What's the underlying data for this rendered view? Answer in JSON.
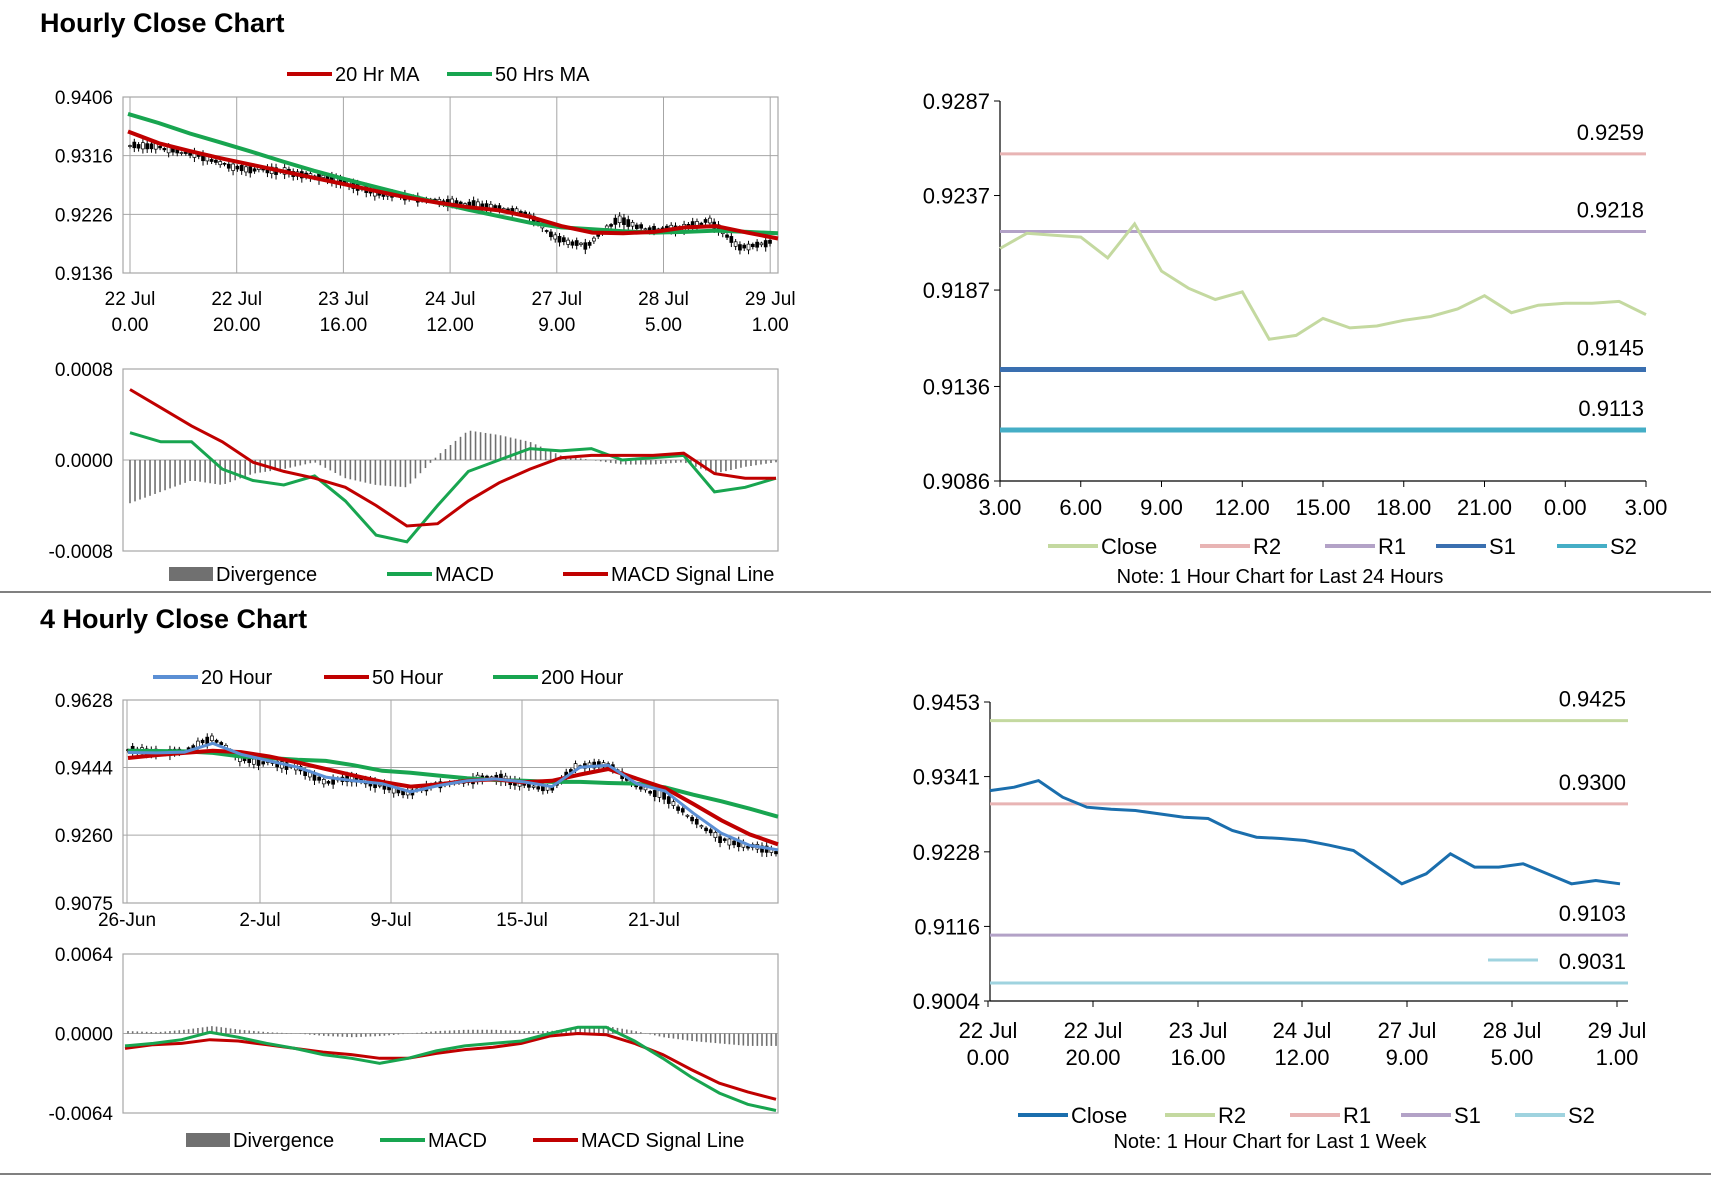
{
  "titles": {
    "hourly": "Hourly Close Chart",
    "four_hourly": "4 Hourly Close Chart"
  },
  "notes": {
    "tr": "Note: 1 Hour Chart for Last 24 Hours",
    "br": "Note: 1 Hour Chart for Last 1 Week"
  },
  "colors": {
    "ma_red": "#c00000",
    "ma_green": "#18a550",
    "ma_blue": "#5b8fd4",
    "divergence": "#707070",
    "close_tr": "#c4d9a0",
    "r2_tr": "#e8b4b4",
    "r1_tr": "#b3a2c7",
    "s1_tr": "#3a6fb0",
    "s2_tr": "#45aec6",
    "close_br": "#1a6ead",
    "r2_br": "#c4d9a0",
    "r1_br": "#e8b4b4",
    "s1_br": "#b3a2c7",
    "s2_br": "#9fd3df",
    "grid": "#a6a6a6"
  },
  "chart_data": [
    {
      "id": "tl_price",
      "type": "line",
      "x_tick_labels": [
        [
          "22 Jul",
          "0.00"
        ],
        [
          "22 Jul",
          "20.00"
        ],
        [
          "23 Jul",
          "16.00"
        ],
        [
          "24 Jul",
          "12.00"
        ],
        [
          "27 Jul",
          "9.00"
        ],
        [
          "28 Jul",
          "5.00"
        ],
        [
          "29 Jul",
          "1.00"
        ]
      ],
      "y_tick_labels": [
        "0.9406",
        "0.9316",
        "0.9226",
        "0.9136"
      ],
      "ylim": [
        0.9136,
        0.9406
      ],
      "grid": true,
      "legend_position": "top",
      "series": [
        {
          "name": "20 Hr MA",
          "color": "#c00000",
          "values": [
            0.9353,
            0.9335,
            0.9323,
            0.9312,
            0.9302,
            0.9292,
            0.9282,
            0.9272,
            0.9262,
            0.9252,
            0.9244,
            0.9237,
            0.9232,
            0.9222,
            0.9208,
            0.9198,
            0.9197,
            0.9199,
            0.9206,
            0.9208,
            0.9198,
            0.9189
          ]
        },
        {
          "name": "50 Hrs MA",
          "color": "#18a550",
          "values": [
            0.938,
            0.9366,
            0.935,
            0.9336,
            0.9322,
            0.9307,
            0.9293,
            0.928,
            0.9268,
            0.9256,
            0.9244,
            0.9233,
            0.9223,
            0.9213,
            0.9206,
            0.9203,
            0.92,
            0.9198,
            0.9199,
            0.9201,
            0.9199,
            0.9197
          ]
        },
        {
          "name": "Price",
          "color": "#000000",
          "values": [
            0.933,
            0.9328,
            0.9318,
            0.9302,
            0.9295,
            0.929,
            0.9285,
            0.9275,
            0.926,
            0.9252,
            0.9248,
            0.924,
            0.9238,
            0.9225,
            0.919,
            0.9175,
            0.922,
            0.92,
            0.9205,
            0.9215,
            0.9175,
            0.9182
          ]
        }
      ]
    },
    {
      "id": "tl_macd",
      "type": "line",
      "y_tick_labels": [
        "0.0008",
        "0.0000",
        "-0.0008"
      ],
      "ylim": [
        -0.0008,
        0.0008
      ],
      "grid": true,
      "legend_position": "bottom",
      "series": [
        {
          "name": "Divergence",
          "color": "#707070",
          "values": [
            -0.00038,
            -0.00028,
            -0.00018,
            -0.00022,
            -0.00012,
            -8e-05,
            -2e-05,
            -0.00016,
            -0.00022,
            -0.00024,
            4e-05,
            0.00026,
            0.00022,
            0.00016,
            4e-05,
            0.0,
            -4e-05,
            -4e-05,
            -2e-05,
            -0.00012,
            -6e-05,
            -2e-05
          ]
        },
        {
          "name": "MACD",
          "color": "#18a550",
          "values": [
            0.00024,
            0.00016,
            0.00016,
            -8e-05,
            -0.00018,
            -0.00022,
            -0.00014,
            -0.00036,
            -0.00066,
            -0.00072,
            -0.0004,
            -0.0001,
            0.0,
            0.0001,
            8e-05,
            0.0001,
            0.0,
            2e-05,
            4e-05,
            -0.00028,
            -0.00024,
            -0.00016
          ]
        },
        {
          "name": "MACD Signal Line",
          "color": "#c00000",
          "values": [
            0.00062,
            0.00046,
            0.0003,
            0.00016,
            -2e-05,
            -0.0001,
            -0.00016,
            -0.00024,
            -0.0004,
            -0.00058,
            -0.00056,
            -0.00036,
            -0.0002,
            -8e-05,
            2e-05,
            4e-05,
            4e-05,
            4e-05,
            6e-05,
            -0.00012,
            -0.00016,
            -0.00016
          ]
        }
      ]
    },
    {
      "id": "tr_close",
      "type": "line",
      "x_tick_labels": [
        "3.00",
        "6.00",
        "9.00",
        "12.00",
        "15.00",
        "18.00",
        "21.00",
        "0.00",
        "3.00"
      ],
      "y_tick_labels": [
        "0.9287",
        "0.9237",
        "0.9187",
        "0.9136",
        "0.9086"
      ],
      "ylim": [
        0.9086,
        0.9287
      ],
      "grid": false,
      "legend_position": "bottom",
      "series": [
        {
          "name": "Close",
          "color": "#c4d9a0",
          "values": [
            0.9209,
            0.9217,
            0.9216,
            0.9215,
            0.9204,
            0.9222,
            0.9197,
            0.9188,
            0.9182,
            0.9186,
            0.9161,
            0.9163,
            0.9172,
            0.9167,
            0.9168,
            0.9171,
            0.9173,
            0.9177,
            0.9184,
            0.9175,
            0.9179,
            0.918,
            0.918,
            0.9181,
            0.9174
          ]
        },
        {
          "name": "R2",
          "color": "#e8b4b4",
          "values": [
            0.9259
          ]
        },
        {
          "name": "R1",
          "color": "#b3a2c7",
          "values": [
            0.9218
          ]
        },
        {
          "name": "S1",
          "color": "#3a6fb0",
          "values": [
            0.9145
          ]
        },
        {
          "name": "S2",
          "color": "#45aec6",
          "values": [
            0.9113
          ]
        }
      ],
      "data_labels": [
        "0.9259",
        "0.9218",
        "0.9145",
        "0.9113"
      ]
    },
    {
      "id": "bl_price",
      "type": "line",
      "x_tick_labels": [
        "26-Jun",
        "2-Jul",
        "9-Jul",
        "15-Jul",
        "21-Jul"
      ],
      "y_tick_labels": [
        "0.9628",
        "0.9444",
        "0.9260",
        "0.9075"
      ],
      "ylim": [
        0.9075,
        0.9628
      ],
      "grid": true,
      "legend_position": "top",
      "series": [
        {
          "name": "20 Hour",
          "color": "#5b8fd4",
          "values": [
            0.9485,
            0.9484,
            0.9486,
            0.951,
            0.948,
            0.9462,
            0.9445,
            0.9418,
            0.9408,
            0.94,
            0.9378,
            0.9395,
            0.9408,
            0.9413,
            0.9405,
            0.9392,
            0.9445,
            0.945,
            0.94,
            0.938,
            0.932,
            0.9265,
            0.9232,
            0.922
          ]
        },
        {
          "name": "50 Hour",
          "color": "#c00000",
          "values": [
            0.947,
            0.9478,
            0.9484,
            0.949,
            0.9486,
            0.9474,
            0.9458,
            0.944,
            0.9422,
            0.9405,
            0.9392,
            0.9398,
            0.9408,
            0.9412,
            0.9404,
            0.9408,
            0.9425,
            0.944,
            0.9414,
            0.9388,
            0.9345,
            0.93,
            0.9262,
            0.9235
          ]
        },
        {
          "name": "200 Hour",
          "color": "#18a550",
          "values": [
            0.949,
            0.9489,
            0.9488,
            0.9484,
            0.9474,
            0.947,
            0.9465,
            0.9462,
            0.945,
            0.9435,
            0.943,
            0.9422,
            0.9415,
            0.941,
            0.9408,
            0.9405,
            0.9405,
            0.9402,
            0.94,
            0.939,
            0.937,
            0.9352,
            0.9332,
            0.931
          ]
        },
        {
          "name": "Price",
          "color": "#000000",
          "values": [
            0.949,
            0.9482,
            0.949,
            0.952,
            0.947,
            0.9455,
            0.944,
            0.9405,
            0.9412,
            0.9395,
            0.9372,
            0.9398,
            0.941,
            0.9415,
            0.9402,
            0.938,
            0.945,
            0.9455,
            0.939,
            0.937,
            0.93,
            0.925,
            0.923,
            0.921
          ]
        }
      ]
    },
    {
      "id": "bl_macd",
      "type": "line",
      "y_tick_labels": [
        "0.0064",
        "0.0000",
        "-0.0064"
      ],
      "ylim": [
        -0.0064,
        0.0064
      ],
      "grid": true,
      "legend_position": "bottom",
      "series": [
        {
          "name": "Divergence",
          "color": "#707070",
          "values": [
            0.0002,
            0.0001,
            0.0003,
            0.0006,
            0.0003,
            0.0001,
            0.0,
            -0.0002,
            -0.0003,
            -0.0002,
            0.0,
            0.0002,
            0.0003,
            0.0003,
            0.0002,
            0.0002,
            0.0005,
            0.0006,
            0.0002,
            -0.0003,
            -0.0006,
            -0.0008,
            -0.001,
            -0.001
          ]
        },
        {
          "name": "MACD",
          "color": "#18a550",
          "values": [
            -0.001,
            -0.0008,
            -0.0005,
            0.0001,
            -0.0003,
            -0.0008,
            -0.0012,
            -0.0017,
            -0.002,
            -0.0024,
            -0.002,
            -0.0014,
            -0.001,
            -0.0008,
            -0.0006,
            0.0,
            0.0005,
            0.0005,
            -0.0006,
            -0.002,
            -0.0035,
            -0.0048,
            -0.0057,
            -0.0062
          ]
        },
        {
          "name": "MACD Signal Line",
          "color": "#c00000",
          "values": [
            -0.0012,
            -0.0009,
            -0.0008,
            -0.0005,
            -0.0006,
            -0.0009,
            -0.0012,
            -0.0015,
            -0.0017,
            -0.002,
            -0.002,
            -0.0016,
            -0.0013,
            -0.0011,
            -0.0008,
            -0.0002,
            0.0,
            -0.0001,
            -0.0008,
            -0.0017,
            -0.0029,
            -0.004,
            -0.0047,
            -0.0053
          ]
        }
      ]
    },
    {
      "id": "br_close",
      "type": "line",
      "x_tick_labels": [
        [
          "22 Jul",
          "0.00"
        ],
        [
          "22 Jul",
          "20.00"
        ],
        [
          "23 Jul",
          "16.00"
        ],
        [
          "24 Jul",
          "12.00"
        ],
        [
          "27 Jul",
          "9.00"
        ],
        [
          "28 Jul",
          "5.00"
        ],
        [
          "29 Jul",
          "1.00"
        ]
      ],
      "y_tick_labels": [
        "0.9453",
        "0.9341",
        "0.9228",
        "0.9116",
        "0.9004"
      ],
      "ylim": [
        0.9004,
        0.9453
      ],
      "grid": false,
      "legend_position": "bottom",
      "series": [
        {
          "name": "Close",
          "color": "#1a6ead",
          "values": [
            0.932,
            0.9325,
            0.9335,
            0.931,
            0.9295,
            0.9292,
            0.929,
            0.9285,
            0.928,
            0.9278,
            0.926,
            0.925,
            0.9248,
            0.9245,
            0.9238,
            0.923,
            0.9205,
            0.918,
            0.9195,
            0.9225,
            0.9205,
            0.9205,
            0.921,
            0.9195,
            0.918,
            0.9185,
            0.918
          ]
        },
        {
          "name": "R2",
          "color": "#c4d9a0",
          "values": [
            0.9425
          ]
        },
        {
          "name": "R1",
          "color": "#e8b4b4",
          "values": [
            0.93
          ]
        },
        {
          "name": "S1",
          "color": "#b3a2c7",
          "values": [
            0.9103
          ]
        },
        {
          "name": "S2",
          "color": "#9fd3df",
          "values": [
            0.9031
          ]
        }
      ],
      "data_labels": [
        "0.9425",
        "0.9300",
        "0.9103",
        "0.9031"
      ]
    }
  ]
}
